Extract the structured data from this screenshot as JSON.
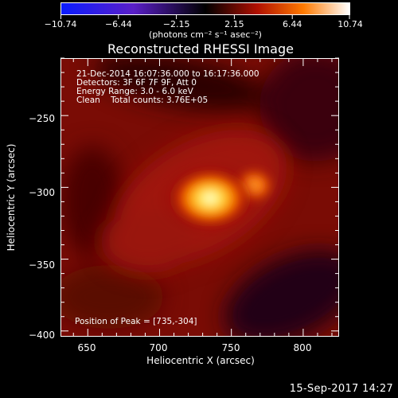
{
  "colorbar": {
    "labels": [
      "−10.74",
      "−6.44",
      "−2.15",
      "2.15",
      "6.44",
      "10.74"
    ],
    "units": "(photons cm⁻² s⁻¹ asec⁻²)",
    "colors": [
      "#0a1cff",
      "#5a1fc8",
      "#000000",
      "#b01000",
      "#ff7a00",
      "#ffffff"
    ]
  },
  "title": "Reconstructed RHESSI Image",
  "info": {
    "line1": "21-Dec-2014 16:07:36.000 to 16:17:36.000",
    "line2": "Detectors: 3F 6F 7F 9F, Att 0",
    "line3": "Energy Range: 3.0 - 6.0 keV",
    "line4": "Clean    Total counts: 3.76E+05"
  },
  "peak_text": "Position of Peak = [735,-304]",
  "axes": {
    "xlabel": "Heliocentric X (arcsec)",
    "ylabel": "Heliocentric Y (arcsec)",
    "xticks": [
      "650",
      "700",
      "750",
      "800"
    ],
    "yticks": [
      "−250",
      "−300",
      "−350",
      "−400"
    ]
  },
  "timestamp": "15-Sep-2017 14:27",
  "image": {
    "x_range": [
      631,
      825
    ],
    "y_range": [
      -404,
      -210
    ],
    "peak": [
      735,
      -304
    ],
    "secondary_source": [
      766,
      -293
    ]
  }
}
